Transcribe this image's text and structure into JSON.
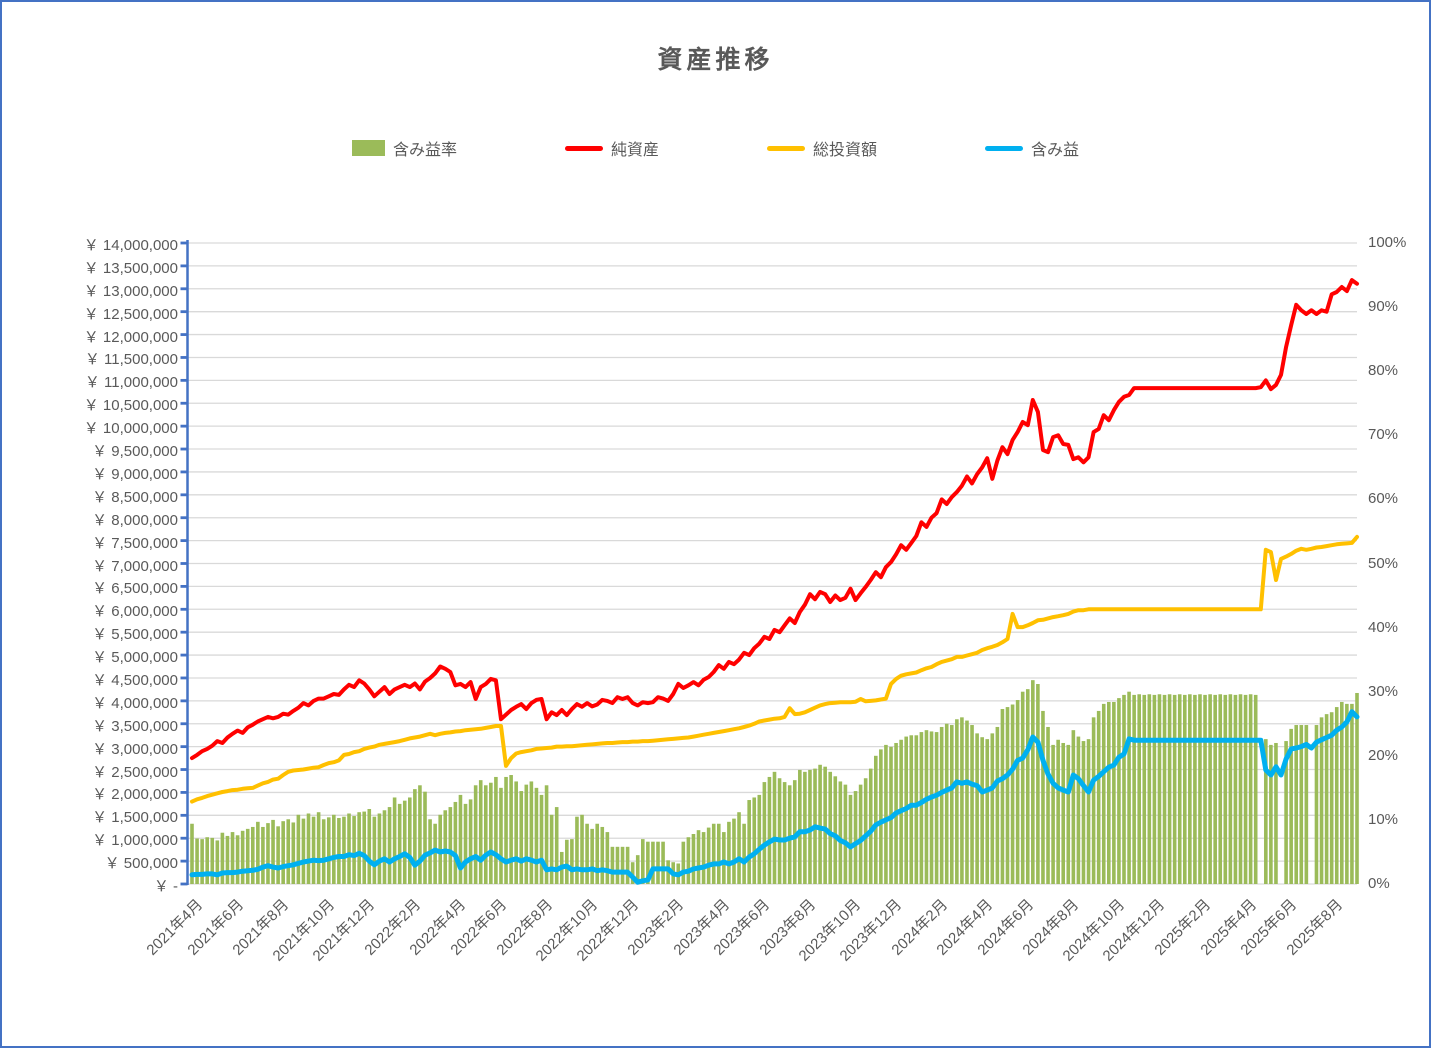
{
  "page": {
    "title": "資産推移"
  },
  "legend": {
    "items": [
      {
        "label": "含み益率",
        "color": "#9BBB59",
        "type": "bar"
      },
      {
        "label": "純資産",
        "color": "#FF0000",
        "type": "line"
      },
      {
        "label": "総投資額",
        "color": "#FFC000",
        "type": "line"
      },
      {
        "label": "含み益",
        "color": "#00B0F0",
        "type": "line"
      }
    ]
  },
  "colors": {
    "border": "#4472C4",
    "axis_line": "#4472C4",
    "gridline": "#D9D9D9",
    "text": "#595959",
    "background": "#FFFFFF"
  },
  "chart_data": {
    "type": "combo",
    "title": "資産推移",
    "resolution": "weekly",
    "legend_position": "top",
    "grid": "horizontal",
    "x_tick_labels": [
      "2021年4月",
      "2021年6月",
      "2021年8月",
      "2021年10月",
      "2021年12月",
      "2022年2月",
      "2022年4月",
      "2022年6月",
      "2022年8月",
      "2022年10月",
      "2022年12月",
      "2023年2月",
      "2023年4月",
      "2023年6月",
      "2023年8月",
      "2023年10月",
      "2023年12月",
      "2024年2月",
      "2024年4月",
      "2024年6月",
      "2024年8月",
      "2024年10月",
      "2024年12月",
      "2025年2月",
      "2025年4月",
      "2025年6月",
      "2025年8月"
    ],
    "axes": {
      "left": {
        "min": 0,
        "max": 14000000,
        "step": 500000,
        "unit": "JPY",
        "tick_labels": [
          "￥ 14,000,000",
          "￥ 13,500,000",
          "￥ 13,000,000",
          "￥ 12,500,000",
          "￥ 12,000,000",
          "￥ 11,500,000",
          "￥ 11,000,000",
          "￥ 10,500,000",
          "￥ 10,000,000",
          "￥ 9,500,000",
          "￥ 9,000,000",
          "￥ 8,500,000",
          "￥ 8,000,000",
          "￥ 7,500,000",
          "￥ 7,000,000",
          "￥ 6,500,000",
          "￥ 6,000,000",
          "￥ 5,500,000",
          "￥ 5,000,000",
          "￥ 4,500,000",
          "￥ 4,000,000",
          "￥ 3,500,000",
          "￥ 3,000,000",
          "￥ 2,500,000",
          "￥ 2,000,000",
          "￥ 1,500,000",
          "￥ 1,000,000",
          "￥ 500,000",
          "￥ -"
        ]
      },
      "right": {
        "min": 0,
        "max": 100,
        "step": 10,
        "unit": "%",
        "tick_labels": [
          "100%",
          "90%",
          "80%",
          "70%",
          "60%",
          "50%",
          "40%",
          "30%",
          "20%",
          "10%",
          "0%"
        ]
      }
    },
    "weeks_per_month_pattern": [
      4,
      4,
      5
    ],
    "series": [
      {
        "name": "含み益率",
        "type": "bar",
        "axis": "right",
        "color": "#9BBB59",
        "unit": "percent",
        "values": [
          9.4,
          7.1,
          7.0,
          7.3,
          7.2,
          6.8,
          8.0,
          7.5,
          8.1,
          7.6,
          8.3,
          8.6,
          8.9,
          9.7,
          8.9,
          9.5,
          10.0,
          9.0,
          9.8,
          10.1,
          9.6,
          10.8,
          10.2,
          11.0,
          10.5,
          11.2,
          10.1,
          10.4,
          10.8,
          10.3,
          10.5,
          11.0,
          10.6,
          11.2,
          11.3,
          11.7,
          10.5,
          11.0,
          11.5,
          12.0,
          13.5,
          12.5,
          13.0,
          13.5,
          14.8,
          15.4,
          14.4,
          10.1,
          9.4,
          10.8,
          11.5,
          12.0,
          12.8,
          13.9,
          12.5,
          13.2,
          15.4,
          16.2,
          15.4,
          15.8,
          16.7,
          15.0,
          16.7,
          17.0,
          16.0,
          14.5,
          15.5,
          16.0,
          15.0,
          13.9,
          15.4,
          10.8,
          12.0,
          5.0,
          6.9,
          7.0,
          10.5,
          10.8,
          9.4,
          8.6,
          9.4,
          8.9,
          8.1,
          5.8,
          5.8,
          5.8,
          5.8,
          3.4,
          4.5,
          7.0,
          6.6,
          6.6,
          6.6,
          6.6,
          3.7,
          3.4,
          3.2,
          6.6,
          7.3,
          7.8,
          8.4,
          8.1,
          8.8,
          9.4,
          9.4,
          8.1,
          9.7,
          10.2,
          11.2,
          9.4,
          13.1,
          13.5,
          13.9,
          15.9,
          16.7,
          17.5,
          16.5,
          15.9,
          15.4,
          16.2,
          17.8,
          17.5,
          17.8,
          18.0,
          18.6,
          18.3,
          17.5,
          16.8,
          16.0,
          15.5,
          13.9,
          14.5,
          15.5,
          16.5,
          18.0,
          20.0,
          21.0,
          21.7,
          21.4,
          22.0,
          22.5,
          23.0,
          23.2,
          23.2,
          23.7,
          24.0,
          23.8,
          23.7,
          24.5,
          25.0,
          24.8,
          25.7,
          26.0,
          25.5,
          24.8,
          23.5,
          22.9,
          22.6,
          23.5,
          24.5,
          27.3,
          27.6,
          28.0,
          28.7,
          30.0,
          30.4,
          31.8,
          31.2,
          27.0,
          24.5,
          21.7,
          22.5,
          22.0,
          21.7,
          24.0,
          23.0,
          22.3,
          22.6,
          26.0,
          27.0,
          28.1,
          28.4,
          28.4,
          29.0,
          29.5,
          30.0,
          29.5,
          29.6,
          29.5,
          29.6,
          29.5,
          29.6,
          29.5,
          29.6,
          29.5,
          29.6,
          29.5,
          29.6,
          29.5,
          29.6,
          29.5,
          29.6,
          29.5,
          29.6,
          29.5,
          29.6,
          29.5,
          29.6,
          29.5,
          29.6,
          29.5,
          0,
          22.6,
          21.7,
          22.0,
          0,
          22.3,
          24.2,
          24.8,
          24.8,
          24.8,
          0,
          24.8,
          26.0,
          26.5,
          26.8,
          27.6,
          28.4,
          28.1,
          28.1,
          29.8
        ]
      },
      {
        "name": "純資産",
        "type": "line",
        "axis": "left",
        "color": "#FF0000",
        "unit": "thousand_yen",
        "values": [
          2750,
          2820,
          2900,
          2950,
          3020,
          3120,
          3080,
          3200,
          3280,
          3350,
          3300,
          3420,
          3480,
          3550,
          3600,
          3650,
          3620,
          3650,
          3720,
          3700,
          3780,
          3850,
          3950,
          3900,
          4000,
          4050,
          4050,
          4100,
          4150,
          4130,
          4250,
          4350,
          4300,
          4450,
          4380,
          4250,
          4100,
          4200,
          4300,
          4150,
          4250,
          4300,
          4350,
          4300,
          4380,
          4250,
          4420,
          4500,
          4600,
          4750,
          4700,
          4630,
          4340,
          4370,
          4300,
          4410,
          4040,
          4300,
          4370,
          4480,
          4450,
          3600,
          3700,
          3800,
          3870,
          3930,
          3820,
          3950,
          4020,
          4040,
          3600,
          3750,
          3690,
          3800,
          3690,
          3820,
          3930,
          3870,
          3950,
          3880,
          3920,
          4020,
          4000,
          3950,
          4080,
          4040,
          4080,
          3950,
          3900,
          3970,
          3950,
          3970,
          4080,
          4050,
          4000,
          4150,
          4370,
          4280,
          4340,
          4410,
          4340,
          4460,
          4520,
          4630,
          4780,
          4700,
          4850,
          4800,
          4900,
          5050,
          5000,
          5150,
          5250,
          5400,
          5350,
          5550,
          5500,
          5650,
          5800,
          5700,
          5940,
          6100,
          6330,
          6220,
          6380,
          6330,
          6160,
          6300,
          6200,
          6250,
          6450,
          6200,
          6350,
          6490,
          6640,
          6810,
          6700,
          6920,
          7030,
          7200,
          7400,
          7300,
          7450,
          7600,
          7900,
          7800,
          8000,
          8100,
          8400,
          8300,
          8450,
          8560,
          8700,
          8900,
          8750,
          8950,
          9100,
          9300,
          8850,
          9250,
          9540,
          9390,
          9700,
          9870,
          10090,
          10020,
          10570,
          10310,
          9480,
          9430,
          9760,
          9800,
          9610,
          9590,
          9280,
          9320,
          9210,
          9320,
          9870,
          9940,
          10240,
          10130,
          10350,
          10530,
          10640,
          10680,
          10830,
          10830,
          10830,
          10830,
          10830,
          10830,
          10830,
          10830,
          10830,
          10830,
          10830,
          10830,
          10830,
          10830,
          10830,
          10830,
          10830,
          10830,
          10830,
          10830,
          10830,
          10830,
          10830,
          10830,
          10830,
          10850,
          11000,
          10810,
          10900,
          11120,
          11730,
          12210,
          12650,
          12530,
          12450,
          12530,
          12450,
          12530,
          12500,
          12880,
          12930,
          13040,
          12950,
          13190,
          13110
        ]
      },
      {
        "name": "総投資額",
        "type": "line",
        "axis": "left",
        "color": "#FFC000",
        "unit": "thousand_yen",
        "values": [
          1800,
          1850,
          1880,
          1920,
          1950,
          1980,
          2010,
          2030,
          2050,
          2060,
          2080,
          2090,
          2100,
          2150,
          2200,
          2230,
          2280,
          2300,
          2380,
          2450,
          2480,
          2490,
          2500,
          2520,
          2540,
          2550,
          2600,
          2640,
          2660,
          2700,
          2820,
          2840,
          2880,
          2900,
          2950,
          2980,
          3000,
          3040,
          3060,
          3080,
          3100,
          3120,
          3150,
          3180,
          3200,
          3220,
          3250,
          3280,
          3250,
          3280,
          3300,
          3310,
          3330,
          3340,
          3360,
          3370,
          3380,
          3390,
          3410,
          3430,
          3450,
          3450,
          2580,
          2750,
          2850,
          2880,
          2900,
          2920,
          2950,
          2960,
          2970,
          2980,
          3000,
          3000,
          3010,
          3010,
          3020,
          3030,
          3040,
          3050,
          3060,
          3070,
          3080,
          3080,
          3090,
          3100,
          3100,
          3110,
          3110,
          3120,
          3120,
          3130,
          3140,
          3150,
          3160,
          3170,
          3180,
          3190,
          3200,
          3220,
          3240,
          3260,
          3280,
          3300,
          3320,
          3340,
          3360,
          3380,
          3400,
          3430,
          3460,
          3500,
          3550,
          3570,
          3590,
          3610,
          3620,
          3650,
          3840,
          3710,
          3720,
          3750,
          3800,
          3850,
          3900,
          3930,
          3950,
          3960,
          3970,
          3970,
          3970,
          3980,
          4040,
          3990,
          4000,
          4010,
          4030,
          4050,
          4370,
          4480,
          4550,
          4580,
          4600,
          4620,
          4670,
          4710,
          4740,
          4800,
          4850,
          4880,
          4910,
          4960,
          4960,
          4990,
          5020,
          5050,
          5110,
          5150,
          5180,
          5220,
          5280,
          5350,
          5900,
          5610,
          5610,
          5650,
          5700,
          5760,
          5770,
          5800,
          5830,
          5850,
          5870,
          5900,
          5950,
          5980,
          5980,
          6000,
          6000,
          6000,
          6000,
          6000,
          6000,
          6000,
          6000,
          6000,
          6000,
          6000,
          6000,
          6000,
          6000,
          6000,
          6000,
          6000,
          6000,
          6000,
          6000,
          6000,
          6000,
          6000,
          6000,
          6000,
          6000,
          6000,
          6000,
          6000,
          6000,
          6000,
          6000,
          6000,
          6000,
          6000,
          7300,
          7250,
          6640,
          7100,
          7150,
          7210,
          7280,
          7320,
          7300,
          7320,
          7350,
          7360,
          7380,
          7400,
          7420,
          7430,
          7440,
          7450,
          7580
        ]
      },
      {
        "name": "含み益",
        "type": "line",
        "axis": "left",
        "color": "#00B0F0",
        "unit": "thousand_yen",
        "values": [
          200,
          210,
          210,
          220,
          220,
          200,
          240,
          250,
          250,
          260,
          280,
          290,
          300,
          320,
          370,
          400,
          370,
          350,
          380,
          400,
          420,
          450,
          480,
          500,
          520,
          510,
          520,
          550,
          580,
          600,
          600,
          640,
          620,
          670,
          620,
          500,
          420,
          500,
          550,
          480,
          550,
          600,
          660,
          580,
          410,
          500,
          630,
          680,
          740,
          700,
          720,
          700,
          620,
          350,
          480,
          550,
          600,
          520,
          630,
          700,
          640,
          550,
          480,
          520,
          550,
          500,
          550,
          520,
          480,
          520,
          310,
          330,
          310,
          370,
          390,
          310,
          330,
          310,
          310,
          330,
          290,
          310,
          290,
          260,
          260,
          260,
          260,
          150,
          40,
          70,
          90,
          330,
          330,
          330,
          330,
          220,
          200,
          260,
          280,
          330,
          350,
          370,
          410,
          440,
          440,
          480,
          440,
          480,
          550,
          480,
          590,
          660,
          760,
          850,
          920,
          980,
          960,
          960,
          1000,
          1030,
          1140,
          1140,
          1180,
          1250,
          1220,
          1200,
          1100,
          1050,
          950,
          900,
          810,
          880,
          950,
          1050,
          1150,
          1290,
          1350,
          1400,
          1450,
          1550,
          1600,
          1650,
          1720,
          1720,
          1780,
          1850,
          1900,
          1940,
          2000,
          2050,
          2100,
          2230,
          2200,
          2230,
          2180,
          2150,
          2010,
          2050,
          2100,
          2250,
          2300,
          2380,
          2510,
          2700,
          2750,
          2930,
          3210,
          3100,
          2700,
          2400,
          2200,
          2100,
          2050,
          2010,
          2380,
          2300,
          2150,
          2010,
          2270,
          2350,
          2450,
          2550,
          2600,
          2770,
          2840,
          3170,
          3140,
          3140,
          3140,
          3140,
          3140,
          3140,
          3140,
          3140,
          3140,
          3140,
          3140,
          3140,
          3140,
          3140,
          3140,
          3140,
          3140,
          3140,
          3140,
          3140,
          3140,
          3140,
          3140,
          3140,
          3140,
          3140,
          2490,
          2380,
          2560,
          2380,
          2730,
          2950,
          2970,
          3000,
          3050,
          2970,
          3100,
          3150,
          3200,
          3250,
          3360,
          3430,
          3540,
          3760,
          3650
        ]
      }
    ]
  }
}
